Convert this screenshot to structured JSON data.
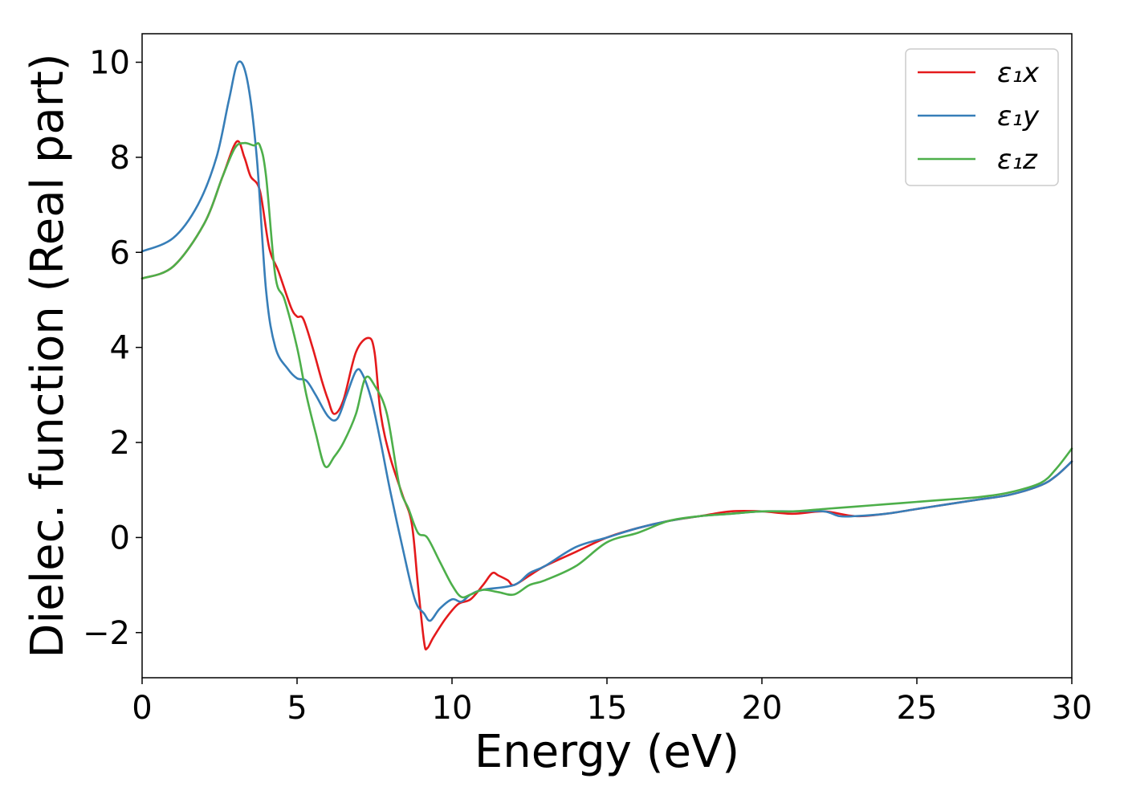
{
  "chart_data": {
    "type": "line",
    "title": "",
    "xlabel": "Energy (eV)",
    "ylabel": "Dielec. function (Real part)",
    "xlim": [
      0,
      30
    ],
    "ylim": [
      -2.95,
      10.6
    ],
    "xticks": [
      0,
      5,
      10,
      15,
      20,
      25,
      30
    ],
    "xtick_labels": [
      "0",
      "5",
      "10",
      "15",
      "20",
      "25",
      "30"
    ],
    "yticks": [
      -2,
      0,
      2,
      4,
      6,
      8,
      10
    ],
    "ytick_labels": [
      "−2",
      "0",
      "2",
      "4",
      "6",
      "8",
      "10"
    ],
    "grid": false,
    "legend_position": "top-right",
    "series": [
      {
        "name": "ε₁x",
        "color": "#e41a1c",
        "points": [
          [
            0,
            5.45
          ],
          [
            1,
            5.7
          ],
          [
            2,
            6.6
          ],
          [
            2.6,
            7.6
          ],
          [
            3.05,
            8.33
          ],
          [
            3.3,
            8.0
          ],
          [
            3.5,
            7.6
          ],
          [
            3.8,
            7.3
          ],
          [
            4.1,
            6.1
          ],
          [
            4.4,
            5.6
          ],
          [
            4.8,
            4.85
          ],
          [
            5.0,
            4.65
          ],
          [
            5.2,
            4.6
          ],
          [
            5.5,
            4.0
          ],
          [
            5.8,
            3.3
          ],
          [
            6.0,
            2.9
          ],
          [
            6.2,
            2.6
          ],
          [
            6.5,
            2.9
          ],
          [
            6.9,
            3.9
          ],
          [
            7.3,
            4.2
          ],
          [
            7.5,
            3.9
          ],
          [
            7.7,
            2.6
          ],
          [
            8.0,
            1.7
          ],
          [
            8.4,
            0.9
          ],
          [
            8.7,
            0.3
          ],
          [
            8.9,
            -1.0
          ],
          [
            9.1,
            -2.2
          ],
          [
            9.2,
            -2.33
          ],
          [
            9.4,
            -2.1
          ],
          [
            9.8,
            -1.7
          ],
          [
            10.2,
            -1.4
          ],
          [
            10.6,
            -1.3
          ],
          [
            11.0,
            -1.0
          ],
          [
            11.3,
            -0.75
          ],
          [
            11.5,
            -0.8
          ],
          [
            11.8,
            -0.9
          ],
          [
            12.0,
            -1.0
          ],
          [
            12.5,
            -0.8
          ],
          [
            13,
            -0.6
          ],
          [
            14,
            -0.3
          ],
          [
            15,
            0.0
          ],
          [
            16,
            0.2
          ],
          [
            17,
            0.35
          ],
          [
            18,
            0.45
          ],
          [
            19,
            0.55
          ],
          [
            20,
            0.55
          ],
          [
            21,
            0.5
          ],
          [
            22,
            0.55
          ],
          [
            23,
            0.45
          ],
          [
            24,
            0.5
          ],
          [
            25,
            0.6
          ],
          [
            26,
            0.7
          ],
          [
            27,
            0.8
          ],
          [
            28,
            0.9
          ],
          [
            29,
            1.1
          ],
          [
            29.5,
            1.3
          ],
          [
            30,
            1.6
          ]
        ]
      },
      {
        "name": "ε₁y",
        "color": "#377eb8",
        "points": [
          [
            0,
            6.02
          ],
          [
            1,
            6.3
          ],
          [
            1.8,
            7.0
          ],
          [
            2.4,
            8.0
          ],
          [
            2.8,
            9.2
          ],
          [
            3.1,
            10.0
          ],
          [
            3.4,
            9.6
          ],
          [
            3.7,
            8.0
          ],
          [
            4.0,
            5.2
          ],
          [
            4.3,
            4.0
          ],
          [
            4.7,
            3.55
          ],
          [
            5.0,
            3.35
          ],
          [
            5.3,
            3.3
          ],
          [
            5.6,
            3.0
          ],
          [
            6.0,
            2.55
          ],
          [
            6.3,
            2.5
          ],
          [
            6.6,
            3.0
          ],
          [
            6.9,
            3.5
          ],
          [
            7.1,
            3.45
          ],
          [
            7.4,
            2.9
          ],
          [
            7.7,
            2.0
          ],
          [
            8.0,
            1.0
          ],
          [
            8.4,
            -0.2
          ],
          [
            8.8,
            -1.3
          ],
          [
            9.1,
            -1.6
          ],
          [
            9.3,
            -1.75
          ],
          [
            9.6,
            -1.5
          ],
          [
            10.0,
            -1.3
          ],
          [
            10.3,
            -1.35
          ],
          [
            10.6,
            -1.2
          ],
          [
            11,
            -1.1
          ],
          [
            12,
            -1.0
          ],
          [
            12.5,
            -0.75
          ],
          [
            13,
            -0.6
          ],
          [
            14,
            -0.2
          ],
          [
            15,
            0.0
          ],
          [
            16,
            0.2
          ],
          [
            17,
            0.35
          ],
          [
            18,
            0.45
          ],
          [
            19,
            0.5
          ],
          [
            20,
            0.55
          ],
          [
            21,
            0.55
          ],
          [
            22,
            0.55
          ],
          [
            22.5,
            0.45
          ],
          [
            23,
            0.45
          ],
          [
            24,
            0.5
          ],
          [
            25,
            0.6
          ],
          [
            26,
            0.7
          ],
          [
            27,
            0.8
          ],
          [
            28,
            0.9
          ],
          [
            29,
            1.1
          ],
          [
            29.5,
            1.3
          ],
          [
            30,
            1.6
          ]
        ]
      },
      {
        "name": "ε₁z",
        "color": "#4daf4a",
        "points": [
          [
            0,
            5.45
          ],
          [
            1,
            5.7
          ],
          [
            2,
            6.6
          ],
          [
            2.6,
            7.6
          ],
          [
            3.0,
            8.2
          ],
          [
            3.3,
            8.3
          ],
          [
            3.6,
            8.25
          ],
          [
            3.8,
            8.25
          ],
          [
            4.0,
            7.6
          ],
          [
            4.3,
            5.5
          ],
          [
            4.6,
            5.0
          ],
          [
            5.0,
            4.0
          ],
          [
            5.3,
            3.0
          ],
          [
            5.6,
            2.2
          ],
          [
            5.9,
            1.5
          ],
          [
            6.2,
            1.7
          ],
          [
            6.5,
            2.0
          ],
          [
            6.9,
            2.6
          ],
          [
            7.2,
            3.35
          ],
          [
            7.5,
            3.2
          ],
          [
            7.9,
            2.6
          ],
          [
            8.3,
            1.1
          ],
          [
            8.6,
            0.6
          ],
          [
            8.9,
            0.1
          ],
          [
            9.2,
            0.0
          ],
          [
            9.6,
            -0.5
          ],
          [
            10.0,
            -1.0
          ],
          [
            10.3,
            -1.25
          ],
          [
            10.6,
            -1.2
          ],
          [
            11,
            -1.1
          ],
          [
            11.5,
            -1.15
          ],
          [
            12,
            -1.2
          ],
          [
            12.5,
            -1.0
          ],
          [
            13,
            -0.9
          ],
          [
            14,
            -0.6
          ],
          [
            15,
            -0.1
          ],
          [
            16,
            0.1
          ],
          [
            17,
            0.35
          ],
          [
            18,
            0.45
          ],
          [
            19,
            0.5
          ],
          [
            20,
            0.55
          ],
          [
            21,
            0.55
          ],
          [
            22,
            0.6
          ],
          [
            23,
            0.65
          ],
          [
            24,
            0.7
          ],
          [
            25,
            0.75
          ],
          [
            26,
            0.8
          ],
          [
            27,
            0.85
          ],
          [
            28,
            0.95
          ],
          [
            29,
            1.15
          ],
          [
            29.5,
            1.45
          ],
          [
            30,
            1.87
          ]
        ]
      }
    ]
  }
}
